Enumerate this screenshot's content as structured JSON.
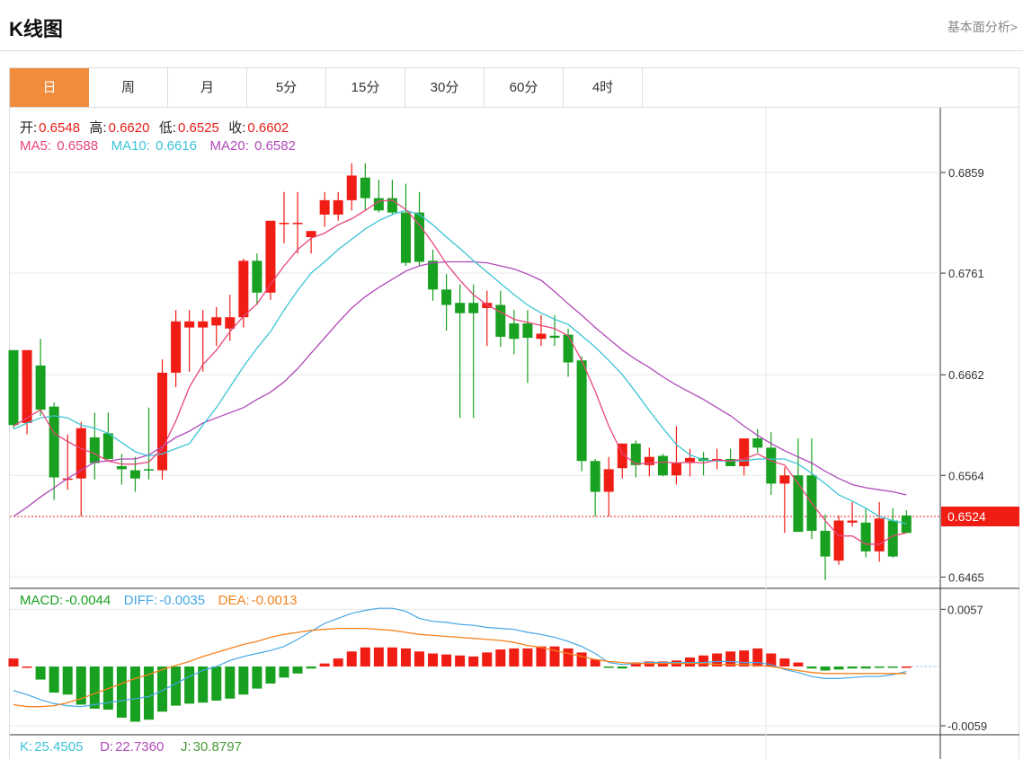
{
  "header": {
    "title": "K线图",
    "fundamental_link": "基本面分析>"
  },
  "tabs": [
    {
      "label": "日",
      "active": true
    },
    {
      "label": "周",
      "active": false
    },
    {
      "label": "月",
      "active": false
    },
    {
      "label": "5分",
      "active": false
    },
    {
      "label": "15分",
      "active": false
    },
    {
      "label": "30分",
      "active": false
    },
    {
      "label": "60分",
      "active": false
    },
    {
      "label": "4时",
      "active": false
    }
  ],
  "ohlc_info": {
    "open_label": "开:",
    "open": "0.6548",
    "high_label": "高:",
    "high": "0.6620",
    "low_label": "低:",
    "low": "0.6525",
    "close_label": "收:",
    "close": "0.6602"
  },
  "ma_info": {
    "ma5_label": "MA5:",
    "ma5": "0.6588",
    "ma10_label": "MA10:",
    "ma10": "0.6616",
    "ma20_label": "MA20:",
    "ma20": "0.6582"
  },
  "macd_info": {
    "macd_label": "MACD:",
    "macd": "-0.0044",
    "diff_label": "DIFF:",
    "diff": "-0.0035",
    "dea_label": "DEA:",
    "dea": "-0.0013"
  },
  "kdj_info": {
    "k_label": "K:",
    "k": "25.4505",
    "d_label": "D:",
    "d": "22.7360",
    "j_label": "J:",
    "j": "30.8797"
  },
  "colors": {
    "up": "#f01d14",
    "down": "#18a020",
    "ma5": "#e8467a",
    "ma10": "#3cc4d6",
    "ma20": "#b048b8",
    "diff": "#45a7e6",
    "dea": "#f5821f",
    "accent": "#f08c3c",
    "price_tag": "#f01d14"
  },
  "chart_data": {
    "type": "candlestick",
    "price_axis": {
      "ticks": [
        0.6859,
        0.6761,
        0.6662,
        0.6564,
        0.6465
      ],
      "ylim": [
        0.6454,
        0.6922
      ]
    },
    "last_price": 0.6524,
    "last_price_label": "0.6524",
    "candles": [
      [
        0.6686,
        0.6686,
        0.661,
        0.6613
      ],
      [
        0.6615,
        0.6686,
        0.6604,
        0.6686
      ],
      [
        0.6671,
        0.6697,
        0.6622,
        0.6628
      ],
      [
        0.6631,
        0.6635,
        0.654,
        0.6562
      ],
      [
        0.6561,
        0.6604,
        0.655,
        0.6561
      ],
      [
        0.6561,
        0.6616,
        0.6524,
        0.661
      ],
      [
        0.6601,
        0.6625,
        0.656,
        0.6576
      ],
      [
        0.6605,
        0.6625,
        0.6579,
        0.658
      ],
      [
        0.6573,
        0.6585,
        0.6555,
        0.657
      ],
      [
        0.6569,
        0.6582,
        0.6548,
        0.6561
      ],
      [
        0.657,
        0.663,
        0.656,
        0.6569
      ],
      [
        0.6569,
        0.6677,
        0.656,
        0.6664
      ],
      [
        0.6664,
        0.6725,
        0.665,
        0.6714
      ],
      [
        0.6708,
        0.6725,
        0.6665,
        0.6714
      ],
      [
        0.6708,
        0.6725,
        0.6665,
        0.6714
      ],
      [
        0.671,
        0.6728,
        0.669,
        0.6718
      ],
      [
        0.6707,
        0.674,
        0.6695,
        0.6718
      ],
      [
        0.6718,
        0.6775,
        0.6708,
        0.6773
      ],
      [
        0.6773,
        0.678,
        0.673,
        0.6742
      ],
      [
        0.6742,
        0.681,
        0.6735,
        0.6812
      ],
      [
        0.681,
        0.684,
        0.679,
        0.681
      ],
      [
        0.681,
        0.684,
        0.678,
        0.681
      ],
      [
        0.6796,
        0.68,
        0.678,
        0.6802
      ],
      [
        0.6818,
        0.684,
        0.6806,
        0.6832
      ],
      [
        0.6818,
        0.684,
        0.6812,
        0.6832
      ],
      [
        0.6832,
        0.6868,
        0.6822,
        0.6856
      ],
      [
        0.6854,
        0.6868,
        0.6822,
        0.6834
      ],
      [
        0.6834,
        0.6852,
        0.682,
        0.6822
      ],
      [
        0.6834,
        0.6852,
        0.6818,
        0.682
      ],
      [
        0.682,
        0.6848,
        0.6768,
        0.6771
      ],
      [
        0.682,
        0.684,
        0.6768,
        0.6772
      ],
      [
        0.6773,
        0.6784,
        0.6734,
        0.6745
      ],
      [
        0.6745,
        0.676,
        0.6705,
        0.673
      ],
      [
        0.6732,
        0.675,
        0.662,
        0.6722
      ],
      [
        0.6732,
        0.675,
        0.662,
        0.6722
      ],
      [
        0.6727,
        0.6744,
        0.669,
        0.6732
      ],
      [
        0.673,
        0.6744,
        0.6689,
        0.6699
      ],
      [
        0.6712,
        0.6725,
        0.6682,
        0.6697
      ],
      [
        0.6712,
        0.6725,
        0.6654,
        0.6698
      ],
      [
        0.6697,
        0.672,
        0.669,
        0.6702
      ],
      [
        0.67,
        0.672,
        0.669,
        0.6698
      ],
      [
        0.6701,
        0.6707,
        0.666,
        0.6674
      ],
      [
        0.6676,
        0.668,
        0.6568,
        0.6578
      ],
      [
        0.6578,
        0.658,
        0.6524,
        0.6548
      ],
      [
        0.6548,
        0.6582,
        0.6524,
        0.657
      ],
      [
        0.6571,
        0.6595,
        0.6561,
        0.6595
      ],
      [
        0.6595,
        0.6598,
        0.6562,
        0.6574
      ],
      [
        0.6574,
        0.6591,
        0.6563,
        0.6582
      ],
      [
        0.6583,
        0.6585,
        0.6563,
        0.6564
      ],
      [
        0.6564,
        0.6612,
        0.6555,
        0.6576
      ],
      [
        0.6576,
        0.659,
        0.6563,
        0.6581
      ],
      [
        0.6581,
        0.6587,
        0.6564,
        0.6578
      ],
      [
        0.6578,
        0.659,
        0.657,
        0.658
      ],
      [
        0.658,
        0.659,
        0.6573,
        0.6573
      ],
      [
        0.6573,
        0.66,
        0.6564,
        0.66
      ],
      [
        0.66,
        0.6609,
        0.6586,
        0.6591
      ],
      [
        0.6591,
        0.6606,
        0.6545,
        0.6556
      ],
      [
        0.6556,
        0.6572,
        0.6508,
        0.6564
      ],
      [
        0.6564,
        0.66,
        0.651,
        0.6509
      ],
      [
        0.6564,
        0.66,
        0.6502,
        0.651
      ],
      [
        0.651,
        0.6526,
        0.6462,
        0.6485
      ],
      [
        0.6481,
        0.6525,
        0.6477,
        0.652
      ],
      [
        0.6518,
        0.6538,
        0.6514,
        0.652
      ],
      [
        0.6518,
        0.6532,
        0.6484,
        0.649
      ],
      [
        0.649,
        0.6538,
        0.648,
        0.6522
      ],
      [
        0.652,
        0.6532,
        0.6484,
        0.6485
      ],
      [
        0.6525,
        0.653,
        0.6512,
        0.6508
      ]
    ],
    "ma5": [
      0.6612,
      0.662,
      0.6628,
      0.6605,
      0.6597,
      0.659,
      0.6585,
      0.6578,
      0.6575,
      0.6575,
      0.6577,
      0.659,
      0.6617,
      0.665,
      0.6672,
      0.6686,
      0.6704,
      0.6719,
      0.6731,
      0.675,
      0.6768,
      0.6784,
      0.6795,
      0.68,
      0.6808,
      0.6814,
      0.6822,
      0.6831,
      0.6832,
      0.6823,
      0.6808,
      0.679,
      0.677,
      0.6754,
      0.674,
      0.673,
      0.6723,
      0.6716,
      0.6713,
      0.671,
      0.6707,
      0.67,
      0.6676,
      0.6646,
      0.6612,
      0.6585,
      0.6575,
      0.6576,
      0.6577,
      0.6576,
      0.6577,
      0.6576,
      0.6579,
      0.6578,
      0.658,
      0.6585,
      0.6578,
      0.6574,
      0.6556,
      0.6537,
      0.652,
      0.6505,
      0.6505,
      0.6497,
      0.6497,
      0.6505,
      0.6508
    ],
    "ma10": [
      0.6609,
      0.6615,
      0.662,
      0.6622,
      0.662,
      0.6613,
      0.661,
      0.6605,
      0.6596,
      0.6587,
      0.6583,
      0.6585,
      0.659,
      0.6595,
      0.6613,
      0.663,
      0.665,
      0.667,
      0.6688,
      0.6704,
      0.6725,
      0.6744,
      0.6761,
      0.6772,
      0.6784,
      0.6794,
      0.6804,
      0.6812,
      0.6818,
      0.6822,
      0.6818,
      0.6808,
      0.6796,
      0.6785,
      0.6773,
      0.6762,
      0.6751,
      0.674,
      0.673,
      0.6722,
      0.6716,
      0.6711,
      0.67,
      0.6689,
      0.6676,
      0.6662,
      0.6645,
      0.6627,
      0.661,
      0.6594,
      0.6584,
      0.6579,
      0.6578,
      0.6578,
      0.6578,
      0.658,
      0.658,
      0.658,
      0.6575,
      0.6566,
      0.6556,
      0.6545,
      0.6539,
      0.6532,
      0.6524,
      0.652,
      0.6517
    ],
    "ma20": [
      0.6524,
      0.6533,
      0.6543,
      0.6552,
      0.6561,
      0.6569,
      0.6577,
      0.6578,
      0.658,
      0.658,
      0.6584,
      0.6592,
      0.6601,
      0.6607,
      0.6615,
      0.662,
      0.6625,
      0.663,
      0.6638,
      0.6645,
      0.6655,
      0.6668,
      0.6683,
      0.6698,
      0.6713,
      0.6727,
      0.6738,
      0.6747,
      0.6755,
      0.6763,
      0.6768,
      0.6771,
      0.6772,
      0.6772,
      0.6772,
      0.6771,
      0.6768,
      0.6765,
      0.676,
      0.6754,
      0.6743,
      0.6731,
      0.672,
      0.6708,
      0.6697,
      0.6686,
      0.6677,
      0.6669,
      0.666,
      0.6652,
      0.6645,
      0.6638,
      0.663,
      0.6622,
      0.6612,
      0.6603,
      0.6595,
      0.6588,
      0.6582,
      0.6576,
      0.6568,
      0.6561,
      0.6555,
      0.6552,
      0.655,
      0.6548,
      0.6545
    ],
    "macd_axis": {
      "ticks": [
        0.0057,
        -0.0059
      ],
      "ylim": [
        -0.0068,
        0.0077
      ]
    },
    "macd_hist": [
      0.0008,
      0.0,
      -0.0013,
      -0.0026,
      -0.0028,
      -0.0038,
      -0.0042,
      -0.0043,
      -0.0051,
      -0.0055,
      -0.0053,
      -0.0045,
      -0.0039,
      -0.0037,
      -0.0036,
      -0.0034,
      -0.0032,
      -0.0028,
      -0.0022,
      -0.0017,
      -0.0011,
      -0.0007,
      -0.0002,
      0.0003,
      0.0008,
      0.0015,
      0.0019,
      0.0019,
      0.0019,
      0.0018,
      0.0015,
      0.0013,
      0.0012,
      0.0011,
      0.001,
      0.0014,
      0.0017,
      0.0018,
      0.0018,
      0.002,
      0.002,
      0.0018,
      0.0014,
      0.0007,
      -0.0001,
      -0.0002,
      0.0004,
      0.0005,
      0.0005,
      0.0006,
      0.0009,
      0.0011,
      0.0013,
      0.0015,
      0.0016,
      0.0018,
      0.0013,
      0.0008,
      0.0004,
      -0.0002,
      -0.0004,
      -0.0003,
      -0.0002,
      -0.0002,
      -0.0001,
      -0.0001,
      0.0
    ],
    "diff": [
      -0.0024,
      -0.0028,
      -0.0033,
      -0.0037,
      -0.0039,
      -0.004,
      -0.0038,
      -0.0036,
      -0.0034,
      -0.0032,
      -0.003,
      -0.0024,
      -0.0017,
      -0.001,
      -0.0004,
      0.0,
      0.0006,
      0.001,
      0.0013,
      0.0016,
      0.002,
      0.0027,
      0.0035,
      0.0043,
      0.0048,
      0.0053,
      0.0056,
      0.0058,
      0.0058,
      0.0055,
      0.0048,
      0.0045,
      0.0044,
      0.0042,
      0.0041,
      0.0039,
      0.0038,
      0.0037,
      0.0034,
      0.0032,
      0.0029,
      0.0025,
      0.002,
      0.0013,
      0.0004,
      0.0002,
      0.0003,
      0.0004,
      0.0004,
      0.0004,
      0.0004,
      0.0004,
      0.0005,
      0.0005,
      0.0004,
      0.0004,
      0.0002,
      -0.0003,
      -0.0006,
      -0.001,
      -0.0012,
      -0.0012,
      -0.0011,
      -0.001,
      -0.001,
      -0.0008,
      -0.0005
    ],
    "dea": [
      -0.0038,
      -0.004,
      -0.004,
      -0.0039,
      -0.0036,
      -0.0032,
      -0.0027,
      -0.0022,
      -0.0017,
      -0.0012,
      -0.0008,
      -0.0003,
      0.0001,
      0.0005,
      0.001,
      0.0014,
      0.0018,
      0.0022,
      0.0025,
      0.0029,
      0.0032,
      0.0034,
      0.0036,
      0.0037,
      0.0038,
      0.0038,
      0.0038,
      0.0037,
      0.0036,
      0.0034,
      0.0032,
      0.0031,
      0.003,
      0.0029,
      0.0028,
      0.0027,
      0.0026,
      0.0024,
      0.0021,
      0.0019,
      0.0016,
      0.0013,
      0.001,
      0.0007,
      0.0005,
      0.0004,
      0.0003,
      0.0003,
      0.0003,
      0.0003,
      0.0003,
      0.0003,
      0.0002,
      0.0002,
      0.0002,
      0.0001,
      0.0,
      -0.0002,
      -0.0004,
      -0.0006,
      -0.0007,
      -0.0007,
      -0.0007,
      -0.0007,
      -0.0007,
      -0.0007,
      -0.0007
    ]
  }
}
